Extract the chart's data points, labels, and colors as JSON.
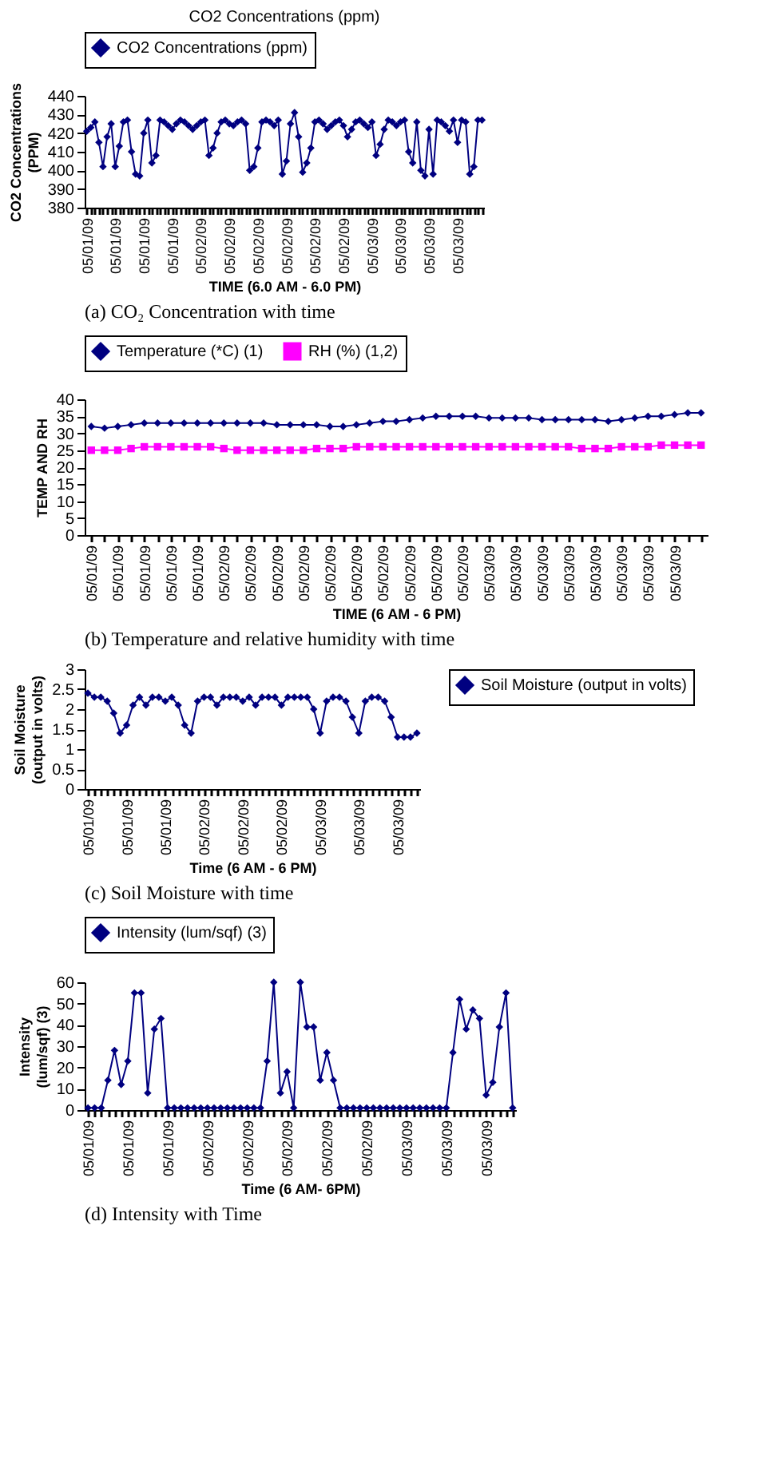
{
  "chart_data": [
    {
      "type": "line",
      "title": "CO2 Concentrations (ppm)",
      "xlabel": "TIME (6.0 AM - 6.0 PM)",
      "ylabel": "CO2 Concentrations (PPM)",
      "annotations": [
        "(a) CO₂ Concentration with time"
      ],
      "legend": "top",
      "marker": "diamond",
      "ylim": [
        380,
        440
      ],
      "yticks": [
        380,
        390,
        400,
        410,
        420,
        430,
        440
      ],
      "categories": [
        "05/01/09",
        null,
        null,
        null,
        null,
        null,
        null,
        "05/01/09",
        null,
        null,
        null,
        null,
        null,
        null,
        "05/01/09",
        null,
        null,
        null,
        null,
        null,
        null,
        "05/01/09",
        null,
        null,
        null,
        null,
        null,
        null,
        "05/02/09",
        null,
        null,
        null,
        null,
        null,
        null,
        "05/02/09",
        null,
        null,
        null,
        null,
        null,
        null,
        "05/02/09",
        null,
        null,
        null,
        null,
        null,
        null,
        "05/02/09",
        null,
        null,
        null,
        null,
        null,
        null,
        "05/02/09",
        null,
        null,
        null,
        null,
        null,
        null,
        "05/02/09",
        null,
        null,
        null,
        null,
        null,
        null,
        "05/03/09",
        null,
        null,
        null,
        null,
        null,
        null,
        "05/03/09",
        null,
        null,
        null,
        null,
        null,
        null,
        "05/03/09",
        null,
        null,
        null,
        null,
        null,
        null,
        "05/03/09",
        null,
        null,
        null,
        null,
        null,
        null
      ],
      "series": [
        {
          "name": "CO2 Concentrations (ppm)",
          "color": "#000080",
          "values": [
            421,
            423,
            426,
            415,
            402,
            418,
            425,
            402,
            413,
            426,
            427,
            410,
            398,
            397,
            420,
            427,
            404,
            408,
            427,
            426,
            424,
            422,
            425,
            427,
            426,
            424,
            422,
            424,
            426,
            427,
            408,
            412,
            420,
            426,
            427,
            425,
            424,
            426,
            427,
            425,
            400,
            402,
            412,
            426,
            427,
            426,
            424,
            427,
            398,
            405,
            425,
            431,
            418,
            399,
            404,
            412,
            426,
            427,
            425,
            422,
            424,
            426,
            427,
            424,
            418,
            422,
            426,
            427,
            425,
            423,
            426,
            408,
            414,
            422,
            427,
            426,
            424,
            426,
            427,
            410,
            404,
            426,
            400,
            397,
            422,
            398,
            427,
            426,
            424,
            421,
            427,
            415,
            427,
            426,
            398,
            402,
            427,
            427
          ]
        }
      ]
    },
    {
      "type": "line",
      "xlabel": "TIME (6 AM - 6 PM)",
      "ylabel": "TEMP AND RH",
      "annotations": [
        "(b) Temperature and relative humidity with time"
      ],
      "legend": "top",
      "marker": "diamond",
      "ylim": [
        0,
        40
      ],
      "yticks": [
        0,
        5,
        10,
        15,
        20,
        25,
        30,
        35,
        40
      ],
      "categories": [
        "05/01/09",
        null,
        "05/01/09",
        null,
        "05/01/09",
        null,
        "05/01/09",
        null,
        "05/01/09",
        null,
        "05/02/09",
        null,
        "05/02/09",
        null,
        "05/02/09",
        null,
        "05/02/09",
        null,
        "05/02/09",
        null,
        "05/02/09",
        null,
        "05/02/09",
        null,
        "05/02/09",
        null,
        "05/02/09",
        null,
        "05/02/09",
        null,
        "05/03/09",
        null,
        "05/03/09",
        null,
        "05/03/09",
        null,
        "05/03/09",
        null,
        "05/03/09",
        null,
        "05/03/09",
        null,
        "05/03/09",
        null,
        "05/03/09",
        null,
        null
      ],
      "series": [
        {
          "name": "Temperature (*C) (1)",
          "color": "#000080",
          "values": [
            32,
            31.5,
            32,
            32.5,
            33,
            33,
            33,
            33,
            33,
            33,
            33,
            33,
            33,
            33,
            32.5,
            32.5,
            32.5,
            32.5,
            32,
            32,
            32.5,
            33,
            33.5,
            33.5,
            34,
            34.5,
            35,
            35,
            35,
            35,
            34.5,
            34.5,
            34.5,
            34.5,
            34,
            34,
            34,
            34,
            34,
            33.5,
            34,
            34.5,
            35,
            35,
            35.5,
            36,
            36
          ]
        },
        {
          "name": "RH (%) (1,2)",
          "color": "#ff00ff",
          "marker": "square",
          "values": [
            25,
            25,
            25,
            25.5,
            26,
            26,
            26,
            26,
            26,
            26,
            25.5,
            25,
            25,
            25,
            25,
            25,
            25,
            25.5,
            25.5,
            25.5,
            26,
            26,
            26,
            26,
            26,
            26,
            26,
            26,
            26,
            26,
            26,
            26,
            26,
            26,
            26,
            26,
            26,
            25.5,
            25.5,
            25.5,
            26,
            26,
            26,
            26.5,
            26.5,
            26.5,
            26.5
          ]
        }
      ]
    },
    {
      "type": "line",
      "xlabel": "Time (6 AM - 6 PM)",
      "ylabel": "Soil Moisture (output in volts)",
      "annotations": [
        "(c) Soil Moisture with time"
      ],
      "legend": "right",
      "marker": "diamond",
      "ylim": [
        0,
        3
      ],
      "yticks": [
        0,
        0.5,
        1,
        1.5,
        2,
        2.5,
        3
      ],
      "categories": [
        "05/01/09",
        null,
        null,
        null,
        null,
        null,
        "05/01/09",
        null,
        null,
        null,
        null,
        null,
        "05/01/09",
        null,
        null,
        null,
        null,
        null,
        "05/02/09",
        null,
        null,
        null,
        null,
        null,
        "05/02/09",
        null,
        null,
        null,
        null,
        null,
        "05/02/09",
        null,
        null,
        null,
        null,
        null,
        "05/03/09",
        null,
        null,
        null,
        null,
        null,
        "05/03/09",
        null,
        null,
        null,
        null,
        null,
        "05/03/09",
        null,
        null,
        null
      ],
      "series": [
        {
          "name": "Soil Moisture (output in volts)",
          "color": "#000080",
          "values": [
            2.4,
            2.3,
            2.3,
            2.2,
            1.9,
            1.4,
            1.6,
            2.1,
            2.3,
            2.1,
            2.3,
            2.3,
            2.2,
            2.3,
            2.1,
            1.6,
            1.4,
            2.2,
            2.3,
            2.3,
            2.1,
            2.3,
            2.3,
            2.3,
            2.2,
            2.3,
            2.1,
            2.3,
            2.3,
            2.3,
            2.1,
            2.3,
            2.3,
            2.3,
            2.3,
            2.0,
            1.4,
            2.2,
            2.3,
            2.3,
            2.2,
            1.8,
            1.4,
            2.2,
            2.3,
            2.3,
            2.2,
            1.8,
            1.3,
            1.3,
            1.3,
            1.4
          ]
        }
      ]
    },
    {
      "type": "line",
      "xlabel": "Time (6 AM- 6PM)",
      "ylabel": "Intensity (lum/sqf) (3)",
      "annotations": [
        "(d) Intensity with Time"
      ],
      "legend": "top",
      "marker": "diamond",
      "ylim": [
        0,
        60
      ],
      "yticks": [
        0,
        10,
        20,
        30,
        40,
        50,
        60
      ],
      "categories": [
        "05/01/09",
        null,
        null,
        null,
        null,
        null,
        "05/01/09",
        null,
        null,
        null,
        null,
        null,
        "05/01/09",
        null,
        null,
        null,
        null,
        null,
        "05/02/09",
        null,
        null,
        null,
        null,
        null,
        "05/02/09",
        null,
        null,
        null,
        null,
        null,
        "05/02/09",
        null,
        null,
        null,
        null,
        null,
        "05/02/09",
        null,
        null,
        null,
        null,
        null,
        "05/02/09",
        null,
        null,
        null,
        null,
        null,
        "05/03/09",
        null,
        null,
        null,
        null,
        null,
        "05/03/09",
        null,
        null,
        null,
        null,
        null,
        "05/03/09",
        null,
        null,
        null,
        null
      ],
      "series": [
        {
          "name": "Intensity (lum/sqf) (3)",
          "color": "#000080",
          "values": [
            1,
            1,
            1,
            14,
            28,
            12,
            23,
            55,
            55,
            8,
            38,
            43,
            1,
            1,
            1,
            1,
            1,
            1,
            1,
            1,
            1,
            1,
            1,
            1,
            1,
            1,
            1,
            23,
            60,
            8,
            18,
            1,
            60,
            39,
            39,
            14,
            27,
            14,
            1,
            1,
            1,
            1,
            1,
            1,
            1,
            1,
            1,
            1,
            1,
            1,
            1,
            1,
            1,
            1,
            1,
            27,
            52,
            38,
            47,
            43,
            7,
            13,
            39,
            55,
            1
          ]
        }
      ]
    }
  ]
}
